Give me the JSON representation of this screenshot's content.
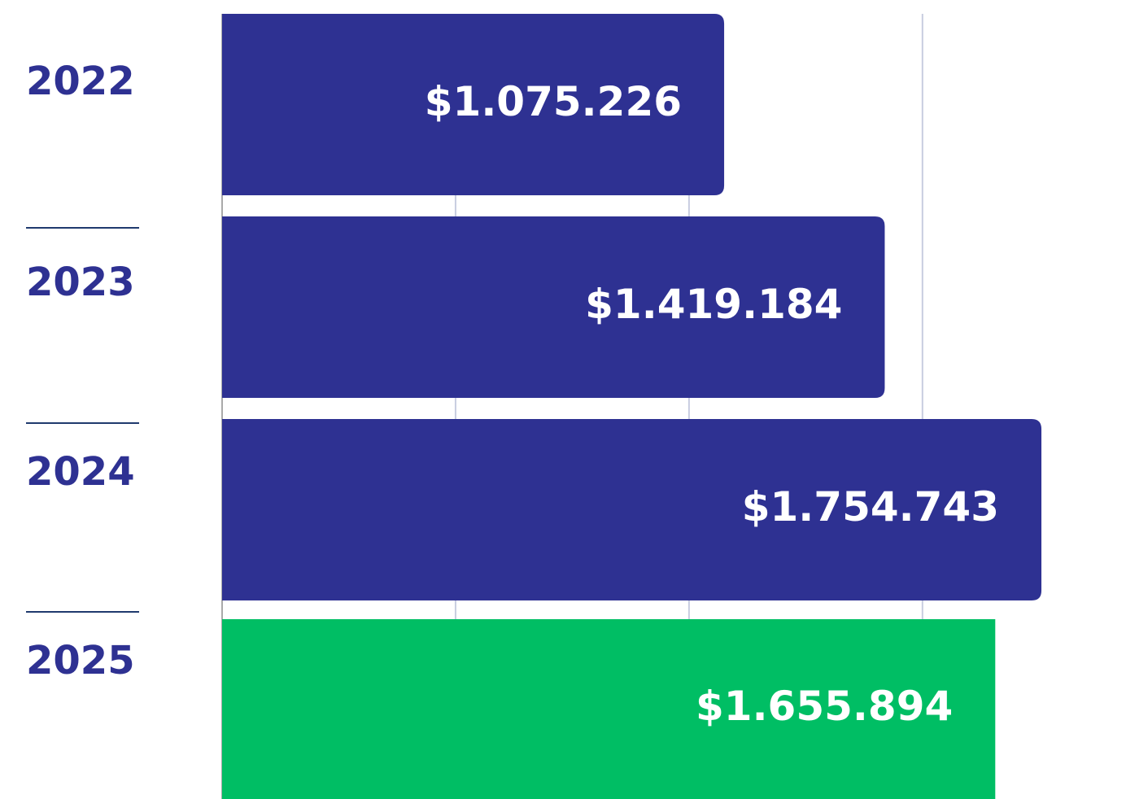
{
  "chart_data": {
    "type": "bar",
    "orientation": "horizontal",
    "categories": [
      "2022",
      "2023",
      "2024",
      "2025"
    ],
    "values": [
      1075226,
      1419184,
      1754743,
      1655894
    ],
    "value_labels": [
      "$1.075.226",
      "$1.419.184",
      "$1.754.743",
      "$1.655.894"
    ],
    "colors": [
      "#2e3192",
      "#2e3192",
      "#2e3192",
      "#00be64"
    ],
    "xlim": [
      0,
      1800000
    ],
    "xticks": [
      0,
      500000,
      1000000,
      1500000
    ],
    "grid": true
  }
}
